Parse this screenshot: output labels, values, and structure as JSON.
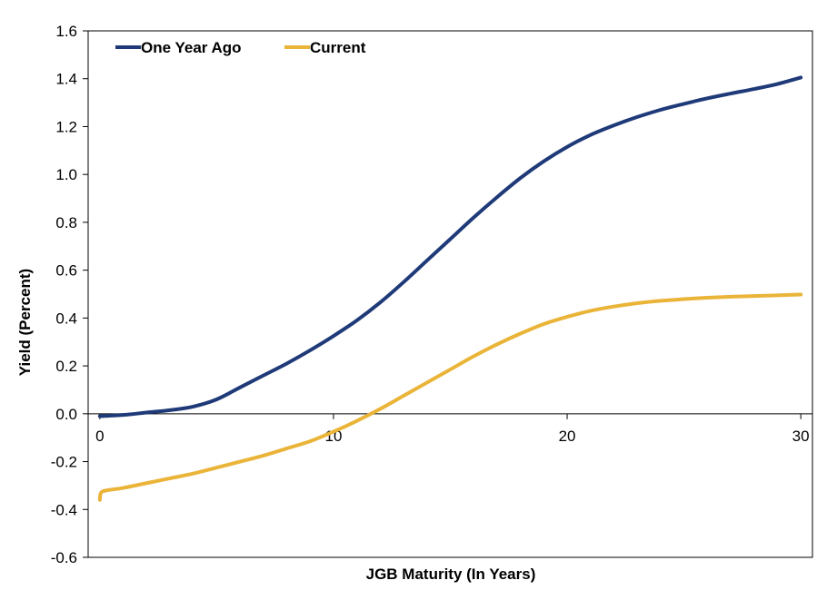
{
  "chart_data": {
    "type": "line",
    "title": "",
    "xlabel": "JGB Maturity (In Years)",
    "ylabel": "Yield (Percent)",
    "xlim": [
      -0.5,
      30.5
    ],
    "ylim": [
      -0.6,
      1.6
    ],
    "xticks": [
      0,
      10,
      20,
      30
    ],
    "yticks": [
      -0.6,
      -0.4,
      -0.2,
      0.0,
      0.2,
      0.4,
      0.6,
      0.8,
      1.0,
      1.2,
      1.4,
      1.6
    ],
    "ytick_labels": [
      "-0.6",
      "-0.4",
      "-0.2",
      "0.0",
      "0.2",
      "0.4",
      "0.6",
      "0.8",
      "1.0",
      "1.2",
      "1.4",
      "1.6"
    ],
    "xtick_labels": [
      "0",
      "10",
      "20",
      "30"
    ],
    "legend_position": "top-left",
    "grid": false,
    "series": [
      {
        "name": "One Year Ago",
        "color": "#1f3a78",
        "points": [
          [
            0,
            -0.01
          ],
          [
            1,
            -0.005
          ],
          [
            2,
            0.005
          ],
          [
            3,
            0.015
          ],
          [
            4,
            0.03
          ],
          [
            5,
            0.06
          ],
          [
            6,
            0.11
          ],
          [
            7,
            0.16
          ],
          [
            8,
            0.21
          ],
          [
            9,
            0.265
          ],
          [
            10,
            0.325
          ],
          [
            11,
            0.39
          ],
          [
            12,
            0.465
          ],
          [
            13,
            0.55
          ],
          [
            14,
            0.64
          ],
          [
            15,
            0.73
          ],
          [
            16,
            0.82
          ],
          [
            17,
            0.905
          ],
          [
            18,
            0.985
          ],
          [
            19,
            1.055
          ],
          [
            20,
            1.115
          ],
          [
            21,
            1.165
          ],
          [
            22,
            1.205
          ],
          [
            23,
            1.24
          ],
          [
            24,
            1.27
          ],
          [
            25,
            1.295
          ],
          [
            26,
            1.318
          ],
          [
            27,
            1.338
          ],
          [
            28,
            1.357
          ],
          [
            29,
            1.378
          ],
          [
            30,
            1.405
          ]
        ]
      },
      {
        "name": "Current",
        "color": "#eab438",
        "points": [
          [
            0,
            -0.36
          ],
          [
            0.05,
            -0.33
          ],
          [
            0.3,
            -0.32
          ],
          [
            1,
            -0.31
          ],
          [
            2,
            -0.29
          ],
          [
            3,
            -0.27
          ],
          [
            4,
            -0.25
          ],
          [
            5,
            -0.225
          ],
          [
            6,
            -0.2
          ],
          [
            7,
            -0.175
          ],
          [
            8,
            -0.145
          ],
          [
            9,
            -0.115
          ],
          [
            10,
            -0.075
          ],
          [
            11,
            -0.03
          ],
          [
            12,
            0.02
          ],
          [
            13,
            0.075
          ],
          [
            14,
            0.13
          ],
          [
            15,
            0.185
          ],
          [
            16,
            0.24
          ],
          [
            17,
            0.29
          ],
          [
            18,
            0.335
          ],
          [
            19,
            0.375
          ],
          [
            20,
            0.405
          ],
          [
            21,
            0.43
          ],
          [
            22,
            0.448
          ],
          [
            23,
            0.462
          ],
          [
            24,
            0.472
          ],
          [
            25,
            0.479
          ],
          [
            26,
            0.485
          ],
          [
            27,
            0.489
          ],
          [
            28,
            0.492
          ],
          [
            29,
            0.495
          ],
          [
            30,
            0.498
          ]
        ]
      }
    ]
  }
}
